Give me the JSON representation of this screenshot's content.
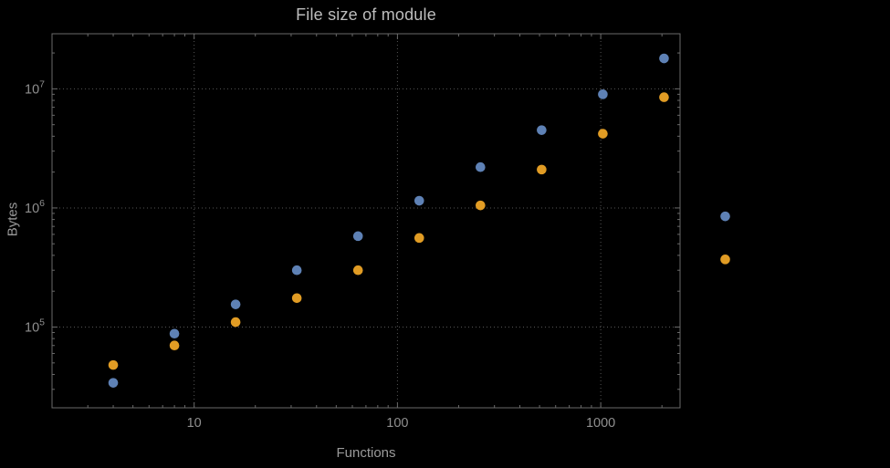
{
  "title": "File size of module",
  "colors": {
    "background": "#000000",
    "frame": "#6a6a6a",
    "grid": "#565656",
    "tick_label": "#8f8f8f",
    "axis_label": "#9a9a9a",
    "title": "#bdbdbd",
    "series_blue": "#5E81B5",
    "series_orange": "#E19C24"
  },
  "chart_data": {
    "type": "scatter",
    "title": "File size of module",
    "xlabel": "Functions",
    "ylabel": "Bytes",
    "x_scale": "log",
    "y_scale": "log",
    "grid": "dotted",
    "legend": "none",
    "xlim": [
      2,
      2455
    ],
    "ylim": [
      21000,
      29000000
    ],
    "x": [
      4,
      8,
      16,
      32,
      64,
      128,
      256,
      512,
      1024,
      2048,
      4096
    ],
    "series": [
      {
        "name": "series-1-blue",
        "color": "#5E81B5",
        "values": [
          34000,
          88000,
          155000,
          300000,
          580000,
          1150000,
          2200000,
          4500000,
          9000000,
          18000000,
          850000
        ]
      },
      {
        "name": "series-2-orange",
        "color": "#E19C24",
        "values": [
          48000,
          70000,
          110000,
          175000,
          300000,
          560000,
          1050000,
          2100000,
          4200000,
          8500000,
          370000
        ]
      }
    ],
    "x_ticks": {
      "values": [
        10,
        100,
        1000
      ],
      "labels": [
        "10",
        "100",
        "1000"
      ]
    },
    "y_ticks": {
      "values": [
        100000,
        1000000,
        10000000
      ],
      "labels": [
        {
          "mantissa": "10",
          "exponent": "5"
        },
        {
          "mantissa": "10",
          "exponent": "6"
        },
        {
          "mantissa": "10",
          "exponent": "7"
        }
      ]
    }
  }
}
